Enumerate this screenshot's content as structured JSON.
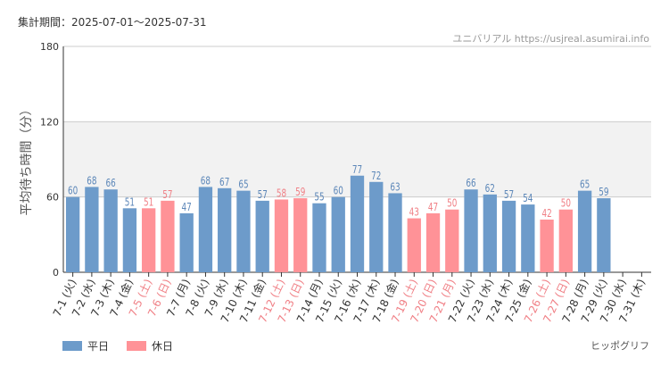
{
  "header": {
    "period": "集計期間：2025-07-01～2025-07-31",
    "credit": "ユニバリアル https://usjreal.asumirai.info"
  },
  "legend": [
    {
      "label": "平日",
      "color": "#6d9bca"
    },
    {
      "label": "休日",
      "color": "#ff9297"
    }
  ],
  "footer": {
    "link": "ヒッポグリフ"
  },
  "chart_data": {
    "type": "bar",
    "ylabel": "平均待ち時間（分）",
    "ylim": [
      0,
      180
    ],
    "yticks": [
      0,
      60,
      120,
      180
    ],
    "highlight_band": [
      60,
      120
    ],
    "grid": true,
    "legend_position": "bottom-left",
    "colors": {
      "weekday": "#6d9bca",
      "holiday": "#ff9297",
      "weekday_label": "#5b86b8",
      "holiday_label": "#f07f85",
      "band": "#f2f2f2"
    },
    "categories": [
      "7-1 (火)",
      "7-2 (水)",
      "7-3 (木)",
      "7-4 (金)",
      "7-5 (土)",
      "7-6 (日)",
      "7-7 (月)",
      "7-8 (火)",
      "7-9 (水)",
      "7-10 (木)",
      "7-11 (金)",
      "7-12 (土)",
      "7-13 (日)",
      "7-14 (月)",
      "7-15 (火)",
      "7-16 (水)",
      "7-17 (木)",
      "7-18 (金)",
      "7-19 (土)",
      "7-20 (日)",
      "7-21 (月)",
      "7-22 (火)",
      "7-23 (水)",
      "7-24 (木)",
      "7-25 (金)",
      "7-26 (土)",
      "7-27 (日)",
      "7-28 (月)",
      "7-29 (火)",
      "7-30 (水)",
      "7-31 (木)"
    ],
    "values": [
      60,
      68,
      66,
      51,
      51,
      57,
      47,
      68,
      67,
      65,
      57,
      58,
      59,
      55,
      60,
      77,
      72,
      63,
      43,
      47,
      50,
      66,
      62,
      57,
      54,
      42,
      50,
      65,
      59,
      null,
      null
    ],
    "day_type": [
      "weekday",
      "weekday",
      "weekday",
      "weekday",
      "holiday",
      "holiday",
      "weekday",
      "weekday",
      "weekday",
      "weekday",
      "weekday",
      "holiday",
      "holiday",
      "weekday",
      "weekday",
      "weekday",
      "weekday",
      "weekday",
      "holiday",
      "holiday",
      "holiday",
      "weekday",
      "weekday",
      "weekday",
      "weekday",
      "holiday",
      "holiday",
      "weekday",
      "weekday",
      "weekday",
      "weekday"
    ]
  }
}
